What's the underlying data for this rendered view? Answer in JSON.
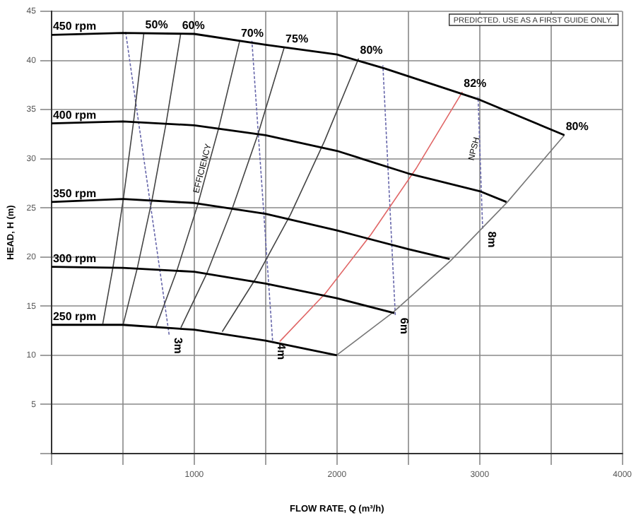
{
  "chart_data": {
    "type": "line",
    "xlabel": "FLOW RATE, Q (m³/h)",
    "ylabel": "HEAD, H (m)",
    "xlim": [
      0,
      4000
    ],
    "ylim": [
      0,
      45
    ],
    "xticks": [
      {
        "value": 0,
        "label": null
      },
      {
        "value": 500,
        "label": null
      },
      1000,
      {
        "value": 1500,
        "label": null
      },
      2000,
      {
        "value": 2500,
        "label": null
      },
      3000,
      {
        "value": 3500,
        "label": null
      },
      4000
    ],
    "yticks": [
      {
        "value": 0,
        "label": null
      },
      5,
      10,
      15,
      20,
      25,
      30,
      35,
      40,
      45
    ],
    "grid": true,
    "legend": false,
    "marker": "none",
    "series": [
      {
        "name": "450 rpm",
        "color": "#000000",
        "x": [
          0,
          500,
          1000,
          1500,
          2000,
          2330,
          3000,
          3594
        ],
        "values": [
          42.6,
          42.8,
          42.7,
          41.6,
          40.6,
          39.2,
          36.0,
          32.4
        ]
      },
      {
        "name": "400 rpm",
        "color": "#000000",
        "x": [
          0,
          500,
          1000,
          1500,
          2000,
          2500,
          3000,
          3188
        ],
        "values": [
          33.6,
          33.8,
          33.4,
          32.4,
          30.8,
          28.5,
          26.7,
          25.6
        ]
      },
      {
        "name": "350 rpm",
        "color": "#000000",
        "x": [
          0,
          500,
          1000,
          1500,
          2000,
          2500,
          2790
        ],
        "values": [
          25.6,
          25.9,
          25.5,
          24.4,
          22.7,
          20.8,
          19.8
        ]
      },
      {
        "name": "300 rpm",
        "color": "#000000",
        "x": [
          0,
          500,
          1000,
          1500,
          2000,
          2402
        ],
        "values": [
          19.0,
          18.9,
          18.5,
          17.3,
          15.8,
          14.3
        ]
      },
      {
        "name": "250 rpm",
        "color": "#000000",
        "x": [
          0,
          500,
          1000,
          1500,
          2000
        ],
        "values": [
          13.1,
          13.1,
          12.6,
          11.5,
          10.0
        ]
      },
      {
        "name": "50%",
        "color": "#444444",
        "x": [
          647,
          575,
          503,
          431,
          359
        ],
        "values": [
          42.8,
          33.8,
          25.9,
          19.0,
          13.2
        ]
      },
      {
        "name": "60%",
        "color": "#444444",
        "x": [
          905,
          804,
          704,
          603,
          503
        ],
        "values": [
          42.7,
          33.7,
          25.8,
          19.0,
          13.2
        ]
      },
      {
        "name": "70%",
        "color": "#444444",
        "x": [
          1317,
          1171,
          1024,
          878,
          732
        ],
        "values": [
          41.9,
          33.1,
          25.3,
          18.6,
          12.9
        ]
      },
      {
        "name": "75%",
        "color": "#444444",
        "x": [
          1630,
          1449,
          1268,
          1087,
          906
        ],
        "values": [
          41.3,
          32.6,
          25.0,
          18.3,
          12.8
        ]
      },
      {
        "name": "80%",
        "color": "#444444",
        "x": [
          2152,
          1913,
          1674,
          1435,
          1196
        ],
        "values": [
          40.2,
          31.8,
          24.3,
          17.9,
          12.4
        ]
      },
      {
        "name": "82%",
        "color": "#e06666",
        "x": [
          2879,
          2559,
          2239,
          1919,
          1599
        ],
        "values": [
          36.8,
          29.1,
          22.3,
          16.3,
          11.4
        ]
      },
      {
        "name": "80%",
        "color": "#777777",
        "x": [
          3594,
          3195,
          2795,
          2396,
          1997
        ],
        "values": [
          32.4,
          25.6,
          19.6,
          14.4,
          10.0
        ]
      },
      {
        "name": "3m",
        "color": "#6666aa",
        "line_style": "dashed",
        "x": [
          824,
          519
        ],
        "values": [
          12.1,
          42.9
        ]
      },
      {
        "name": "4m",
        "color": "#6666aa",
        "line_style": "dashed",
        "x": [
          1549,
          1404
        ],
        "values": [
          11.5,
          42.0
        ]
      },
      {
        "name": "6m",
        "color": "#6666aa",
        "line_style": "dashed",
        "x": [
          2409,
          2322
        ],
        "values": [
          14.1,
          39.5
        ]
      },
      {
        "name": "8m",
        "color": "#6666aa",
        "line_style": "dashed",
        "x": [
          3021,
          2989
        ],
        "values": [
          22.9,
          36.3
        ]
      }
    ],
    "annotations": [
      {
        "text": "EFFICIENCY",
        "x": 1098,
        "y": 29
      },
      {
        "text": "NPSH",
        "x": 3002,
        "y": 31
      },
      "PREDICTED. USE AS A FIRST GUIDE ONLY."
    ]
  }
}
